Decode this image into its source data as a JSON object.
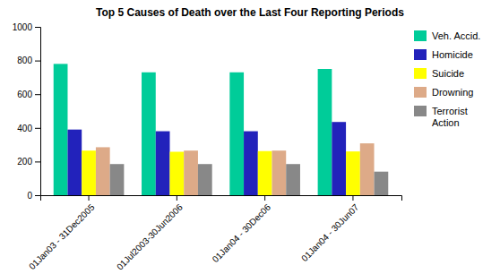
{
  "chart_data": {
    "type": "bar",
    "title": "Top 5 Causes of Death over the Last Four Reporting Periods",
    "categories": [
      "01Jan03 - 31Dec2005",
      "01Jul2003-30Jun2006",
      "01Jan04 - 30Dec06",
      "01Jan04 - 30Jun07"
    ],
    "series": [
      {
        "name": "Veh. Accid.",
        "color": "#00CC99",
        "values": [
          780,
          730,
          730,
          750
        ]
      },
      {
        "name": "Homicide",
        "color": "#2222BB",
        "values": [
          390,
          380,
          380,
          435
        ]
      },
      {
        "name": "Suicide",
        "color": "#FFFF00",
        "values": [
          265,
          258,
          262,
          260
        ]
      },
      {
        "name": "Drowning",
        "color": "#DDAA88",
        "values": [
          285,
          265,
          265,
          308
        ]
      },
      {
        "name": "Terrorist\nAction",
        "color": "#888888",
        "values": [
          185,
          185,
          185,
          140
        ]
      }
    ],
    "ylim": [
      0,
      1000
    ],
    "yticks": [
      0,
      200,
      400,
      600,
      800,
      1000
    ],
    "grid": false,
    "legend": "right"
  }
}
